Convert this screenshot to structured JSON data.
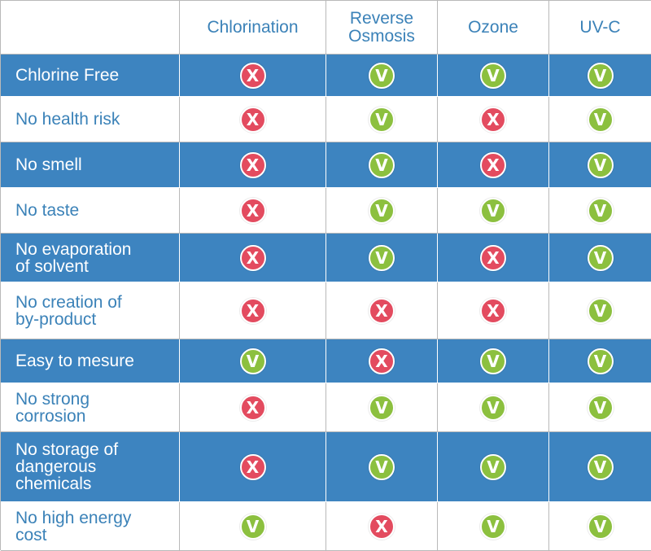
{
  "colors": {
    "header_blue": "#3d84c0",
    "text_blue": "#3b82b8",
    "yes_green": "#8cc03f",
    "no_red": "#e34b5f"
  },
  "icons": {
    "yes": "check-v-icon",
    "no": "cross-x-icon"
  },
  "columns": [
    "",
    "Chlorination",
    "Reverse\nOsmosis",
    "Ozone",
    "UV-C"
  ],
  "symbols": {
    "yes": "V",
    "no": "X"
  },
  "rows": [
    {
      "label": "Chlorine Free",
      "values": [
        "no",
        "yes",
        "yes",
        "yes"
      ]
    },
    {
      "label": "No health risk",
      "values": [
        "no",
        "yes",
        "no",
        "yes"
      ]
    },
    {
      "label": "No smell",
      "values": [
        "no",
        "yes",
        "no",
        "yes"
      ]
    },
    {
      "label": "No taste",
      "values": [
        "no",
        "yes",
        "yes",
        "yes"
      ]
    },
    {
      "label": "No evaporation\nof solvent",
      "values": [
        "no",
        "yes",
        "no",
        "yes"
      ]
    },
    {
      "label": "No creation of\nby-product",
      "values": [
        "no",
        "no",
        "no",
        "yes"
      ]
    },
    {
      "label": "Easy to mesure",
      "values": [
        "yes",
        "no",
        "yes",
        "yes"
      ]
    },
    {
      "label": "No strong\ncorrosion",
      "values": [
        "no",
        "yes",
        "yes",
        "yes"
      ]
    },
    {
      "label": "No storage of\ndangerous\nchemicals",
      "values": [
        "no",
        "yes",
        "yes",
        "yes"
      ]
    },
    {
      "label": "No high energy\ncost",
      "values": [
        "yes",
        "no",
        "yes",
        "yes"
      ]
    }
  ]
}
